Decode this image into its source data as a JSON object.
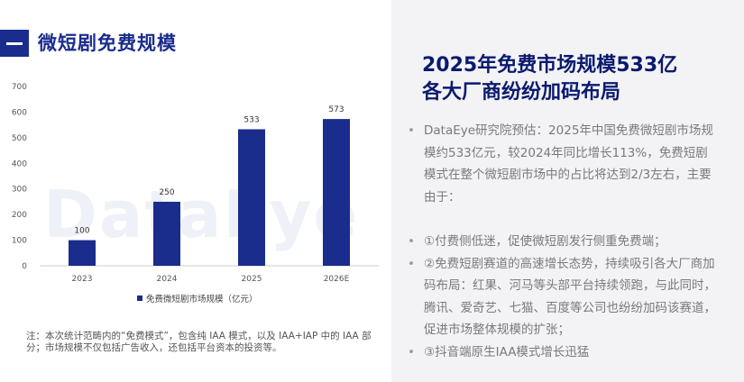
{
  "header": {
    "title": "微短剧免费规模"
  },
  "watermark": "DataEye",
  "chart_data": {
    "type": "bar",
    "categories": [
      "2023",
      "2024",
      "2025",
      "2026E"
    ],
    "series": [
      {
        "name": "免费微短剧市场规模（亿元）",
        "values": [
          100,
          250,
          533,
          573
        ]
      }
    ],
    "data_labels": [
      "100",
      "250",
      "533",
      "573"
    ],
    "yticks": [
      0,
      100,
      200,
      300,
      400,
      500,
      600,
      700
    ],
    "ylim": [
      0,
      700
    ],
    "legend_position": "bottom",
    "bar_color": "#1a2c8c",
    "grid": false
  },
  "note": "注：本次统计范畴内的“免费模式”，包含纯 IAA 模式，以及 IAA+IAP 中的 IAA 部分；市场规模不仅包括广告收入，还包括平台资本的投资等。",
  "right": {
    "title_line1": "2025年免费市场规模533亿",
    "title_line2": "各大厂商纷纷加码布局",
    "bullets": [
      "DataEye研究院预估：2025年中国免费微短剧市场规模约533亿元，较2024年同比增长113%，免费短剧模式在整个微短剧市场中的占比将达到2/3左右，主要由于：",
      "①付费侧低迷，促使微短剧发行侧重免费端；",
      "②免费短剧赛道的高速增长态势，持续吸引各大厂商加码布局：红果、河马等头部平台持续领跑，与此同时，腾讯、爱奇艺、七猫、百度等公司也纷纷加码该赛道，促进市场整体规模的扩张；",
      "③抖音端原生IAA模式增长迅猛"
    ]
  },
  "colors": {
    "brand": "#1a2c8c",
    "title_navy": "#0a1a6e",
    "right_bg": "#f3f3f6"
  }
}
